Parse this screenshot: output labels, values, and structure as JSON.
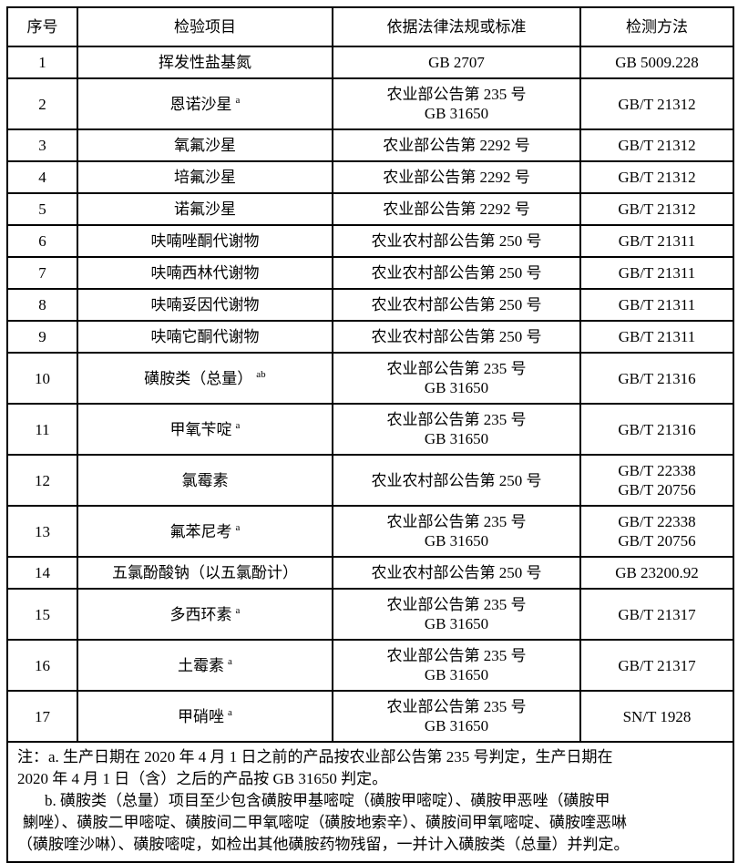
{
  "page": {
    "background_color": "#ffffff",
    "text_color": "#000000",
    "border_color": "#000000"
  },
  "table": {
    "headers": [
      {
        "label": "序号"
      },
      {
        "label": "检验项目"
      },
      {
        "label": "依据法律法规或标准"
      },
      {
        "label": "检测方法"
      }
    ],
    "rows": [
      {
        "no": "1",
        "item": "挥发性盐基氮",
        "sup": "",
        "basis": [
          "GB 2707"
        ],
        "method": [
          "GB 5009.228"
        ]
      },
      {
        "no": "2",
        "item": "恩诺沙星",
        "sup": "a",
        "basis": [
          "农业部公告第 235 号",
          "GB 31650"
        ],
        "method": [
          "GB/T 21312"
        ]
      },
      {
        "no": "3",
        "item": "氧氟沙星",
        "sup": "",
        "basis": [
          "农业部公告第 2292 号"
        ],
        "method": [
          "GB/T 21312"
        ]
      },
      {
        "no": "4",
        "item": "培氟沙星",
        "sup": "",
        "basis": [
          "农业部公告第 2292 号"
        ],
        "method": [
          "GB/T 21312"
        ]
      },
      {
        "no": "5",
        "item": "诺氟沙星",
        "sup": "",
        "basis": [
          "农业部公告第 2292 号"
        ],
        "method": [
          "GB/T 21312"
        ]
      },
      {
        "no": "6",
        "item": "呋喃唑酮代谢物",
        "sup": "",
        "basis": [
          "农业农村部公告第 250 号"
        ],
        "method": [
          "GB/T 21311"
        ]
      },
      {
        "no": "7",
        "item": "呋喃西林代谢物",
        "sup": "",
        "basis": [
          "农业农村部公告第 250 号"
        ],
        "method": [
          "GB/T 21311"
        ]
      },
      {
        "no": "8",
        "item": "呋喃妥因代谢物",
        "sup": "",
        "basis": [
          "农业农村部公告第 250 号"
        ],
        "method": [
          "GB/T 21311"
        ]
      },
      {
        "no": "9",
        "item": "呋喃它酮代谢物",
        "sup": "",
        "basis": [
          "农业农村部公告第 250 号"
        ],
        "method": [
          "GB/T 21311"
        ]
      },
      {
        "no": "10",
        "item": "磺胺类（总量）",
        "sup": "ab",
        "basis": [
          "农业部公告第 235 号",
          "GB 31650"
        ],
        "method": [
          "GB/T 21316"
        ]
      },
      {
        "no": "11",
        "item": "甲氧苄啶",
        "sup": "a",
        "basis": [
          "农业部公告第 235 号",
          "GB 31650"
        ],
        "method": [
          "GB/T 21316"
        ]
      },
      {
        "no": "12",
        "item": "氯霉素",
        "sup": "",
        "basis": [
          "农业农村部公告第 250 号"
        ],
        "method": [
          "GB/T 22338",
          "GB/T 20756"
        ]
      },
      {
        "no": "13",
        "item": "氟苯尼考",
        "sup": "a",
        "basis": [
          "农业部公告第 235 号",
          "GB 31650"
        ],
        "method": [
          "GB/T 22338",
          "GB/T 20756"
        ]
      },
      {
        "no": "14",
        "item": "五氯酚酸钠（以五氯酚计）",
        "sup": "",
        "basis": [
          "农业农村部公告第 250 号"
        ],
        "method": [
          "GB 23200.92"
        ]
      },
      {
        "no": "15",
        "item": "多西环素",
        "sup": "a",
        "basis": [
          "农业部公告第 235 号",
          "GB 31650"
        ],
        "method": [
          "GB/T 21317"
        ]
      },
      {
        "no": "16",
        "item": "土霉素",
        "sup": "a",
        "basis": [
          "农业部公告第 235 号",
          "GB 31650"
        ],
        "method": [
          "GB/T 21317"
        ]
      },
      {
        "no": "17",
        "item": "甲硝唑",
        "sup": "a",
        "basis": [
          "农业部公告第 235 号",
          "GB 31650"
        ],
        "method": [
          "SN/T 1928"
        ]
      }
    ]
  },
  "notes": {
    "lines": [
      "注：a. 生产日期在 2020 年 4 月 1 日之前的产品按农业部公告第 235 号判定，生产日期在",
      "2020 年 4 月 1 日（含）之后的产品按 GB 31650 判定。",
      "b. 磺胺类（总量）项目至少包含磺胺甲基嘧啶（磺胺甲嘧啶）、磺胺甲恶唑（磺胺甲",
      "鯻唑）、磺胺二甲嘧啶、磺胺间二甲氧嘧啶（磺胺地索辛）、磺胺间甲氧嘧啶、磺胺喹恶啉",
      "（磺胺喹沙啉）、磺胺嘧啶，如检出其他磺胺药物残留，一并计入磺胺类（总量）并判定。"
    ]
  }
}
